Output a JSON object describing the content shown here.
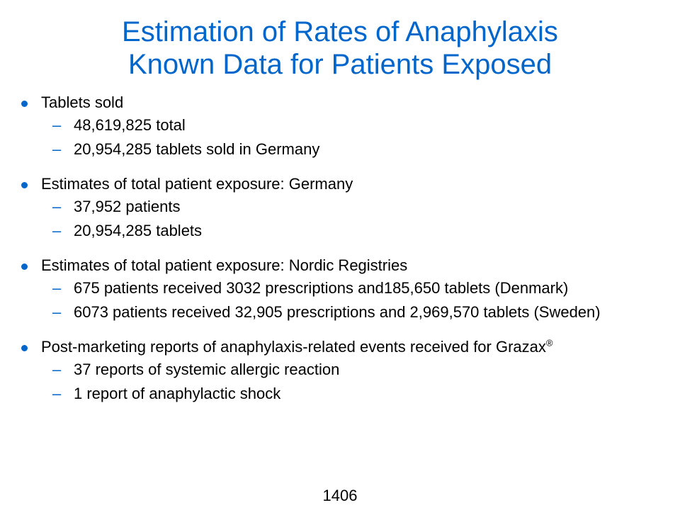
{
  "title": {
    "line1": "Estimation of Rates of Anaphylaxis",
    "line2": "Known Data for Patients Exposed"
  },
  "colors": {
    "accent": "#0066cc",
    "text": "#000000",
    "background": "#ffffff"
  },
  "bullet_icon": "filled-circle-bullet",
  "sections": [
    {
      "text": "Tablets sold",
      "items": [
        "48,619,825 total",
        "20,954,285 tablets sold in Germany"
      ]
    },
    {
      "text": "Estimates of total patient exposure: Germany",
      "items": [
        "37,952 patients",
        "20,954,285 tablets"
      ]
    },
    {
      "text": "Estimates of total patient exposure: Nordic Registries",
      "items": [
        "675 patients received 3032 prescriptions and185,650 tablets (Denmark)",
        "6073 patients received 32,905 prescriptions and 2,969,570 tablets (Sweden)"
      ]
    },
    {
      "text": "Post-marketing reports of anaphylaxis-related events received for Grazax",
      "text_sup": "®",
      "items": [
        "37 reports of systemic allergic reaction",
        "1 report of anaphylactic shock"
      ]
    }
  ],
  "sub_bullet_dash": "–",
  "page_number": "1406"
}
